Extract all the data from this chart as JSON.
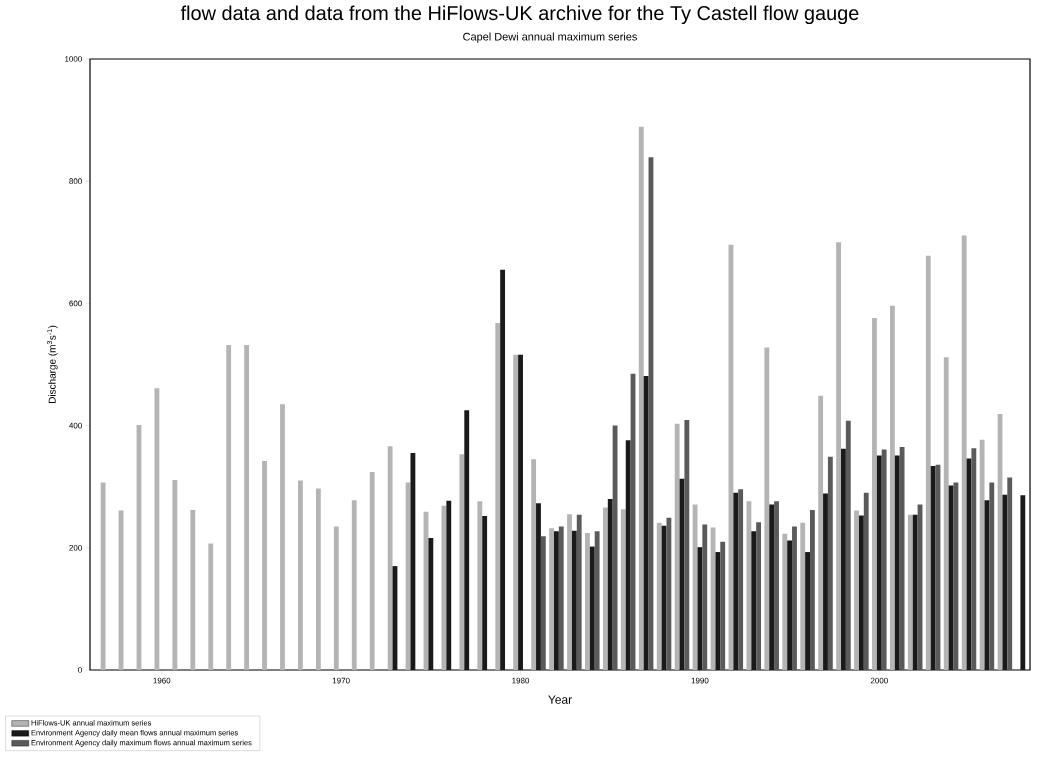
{
  "chart_data": {
    "type": "bar",
    "title": "Capel Dewi annual maximum series",
    "annotations": [
      "flow data and data from the HiFlows-UK archive for the Ty Castell flow gauge"
    ],
    "xlabel": "Year",
    "ylabel": "Discharge (m$^{3}$s$^{-1}$)",
    "x": [
      1957,
      1958,
      1959,
      1960,
      1961,
      1962,
      1963,
      1964,
      1965,
      1966,
      1967,
      1968,
      1969,
      1970,
      1971,
      1972,
      1973,
      1974,
      1975,
      1976,
      1977,
      1978,
      1979,
      1980,
      1981,
      1982,
      1983,
      1984,
      1985,
      1986,
      1987,
      1988,
      1989,
      1990,
      1991,
      1992,
      1993,
      1994,
      1995,
      1996,
      1997,
      1998,
      1999,
      2000,
      2001,
      2002,
      2003,
      2004,
      2005,
      2006,
      2007,
      2008
    ],
    "series": [
      {
        "name": "HiFlows-UK annual maximum series",
        "color": "#b4b4b4",
        "values": [
          307,
          261,
          401,
          461,
          311,
          262,
          207,
          532,
          532,
          342,
          435,
          310,
          297,
          235,
          278,
          324,
          366,
          307,
          259,
          269,
          353,
          276,
          568,
          516,
          345,
          232,
          255,
          224,
          266,
          263,
          889,
          241,
          403,
          271,
          233,
          696,
          276,
          528,
          223,
          241,
          449,
          700,
          261,
          576,
          596,
          254,
          678,
          512,
          711,
          377,
          419,
          null
        ]
      },
      {
        "name": "Environment Agency daily mean flows annual maximum series",
        "color": "#1a1a1a",
        "values": [
          null,
          null,
          null,
          null,
          null,
          null,
          null,
          null,
          null,
          null,
          null,
          null,
          null,
          null,
          null,
          null,
          170,
          355,
          216,
          277,
          425,
          252,
          655,
          516,
          273,
          227,
          228,
          202,
          280,
          376,
          481,
          236,
          313,
          201,
          193,
          290,
          227,
          271,
          212,
          193,
          289,
          362,
          253,
          351,
          351,
          254,
          334,
          302,
          346,
          278,
          287,
          286
        ]
      },
      {
        "name": "Environment Agency daily maximum flows annual maximum series",
        "color": "#5a5a5a",
        "values": [
          null,
          null,
          null,
          null,
          null,
          null,
          null,
          null,
          null,
          null,
          null,
          null,
          null,
          null,
          null,
          null,
          null,
          null,
          null,
          null,
          null,
          null,
          null,
          null,
          219,
          235,
          254,
          227,
          400,
          485,
          839,
          249,
          409,
          238,
          210,
          296,
          242,
          276,
          235,
          262,
          349,
          408,
          290,
          361,
          365,
          271,
          336,
          307,
          363,
          307,
          315,
          null
        ]
      }
    ],
    "xlim": [
      1956,
      2008.4
    ],
    "xticks": [
      1960,
      1970,
      1980,
      1990,
      2000
    ],
    "ylim": [
      0,
      1000
    ],
    "yticks": [
      0,
      200,
      400,
      600,
      800,
      1000
    ],
    "legend": "bottom left"
  }
}
